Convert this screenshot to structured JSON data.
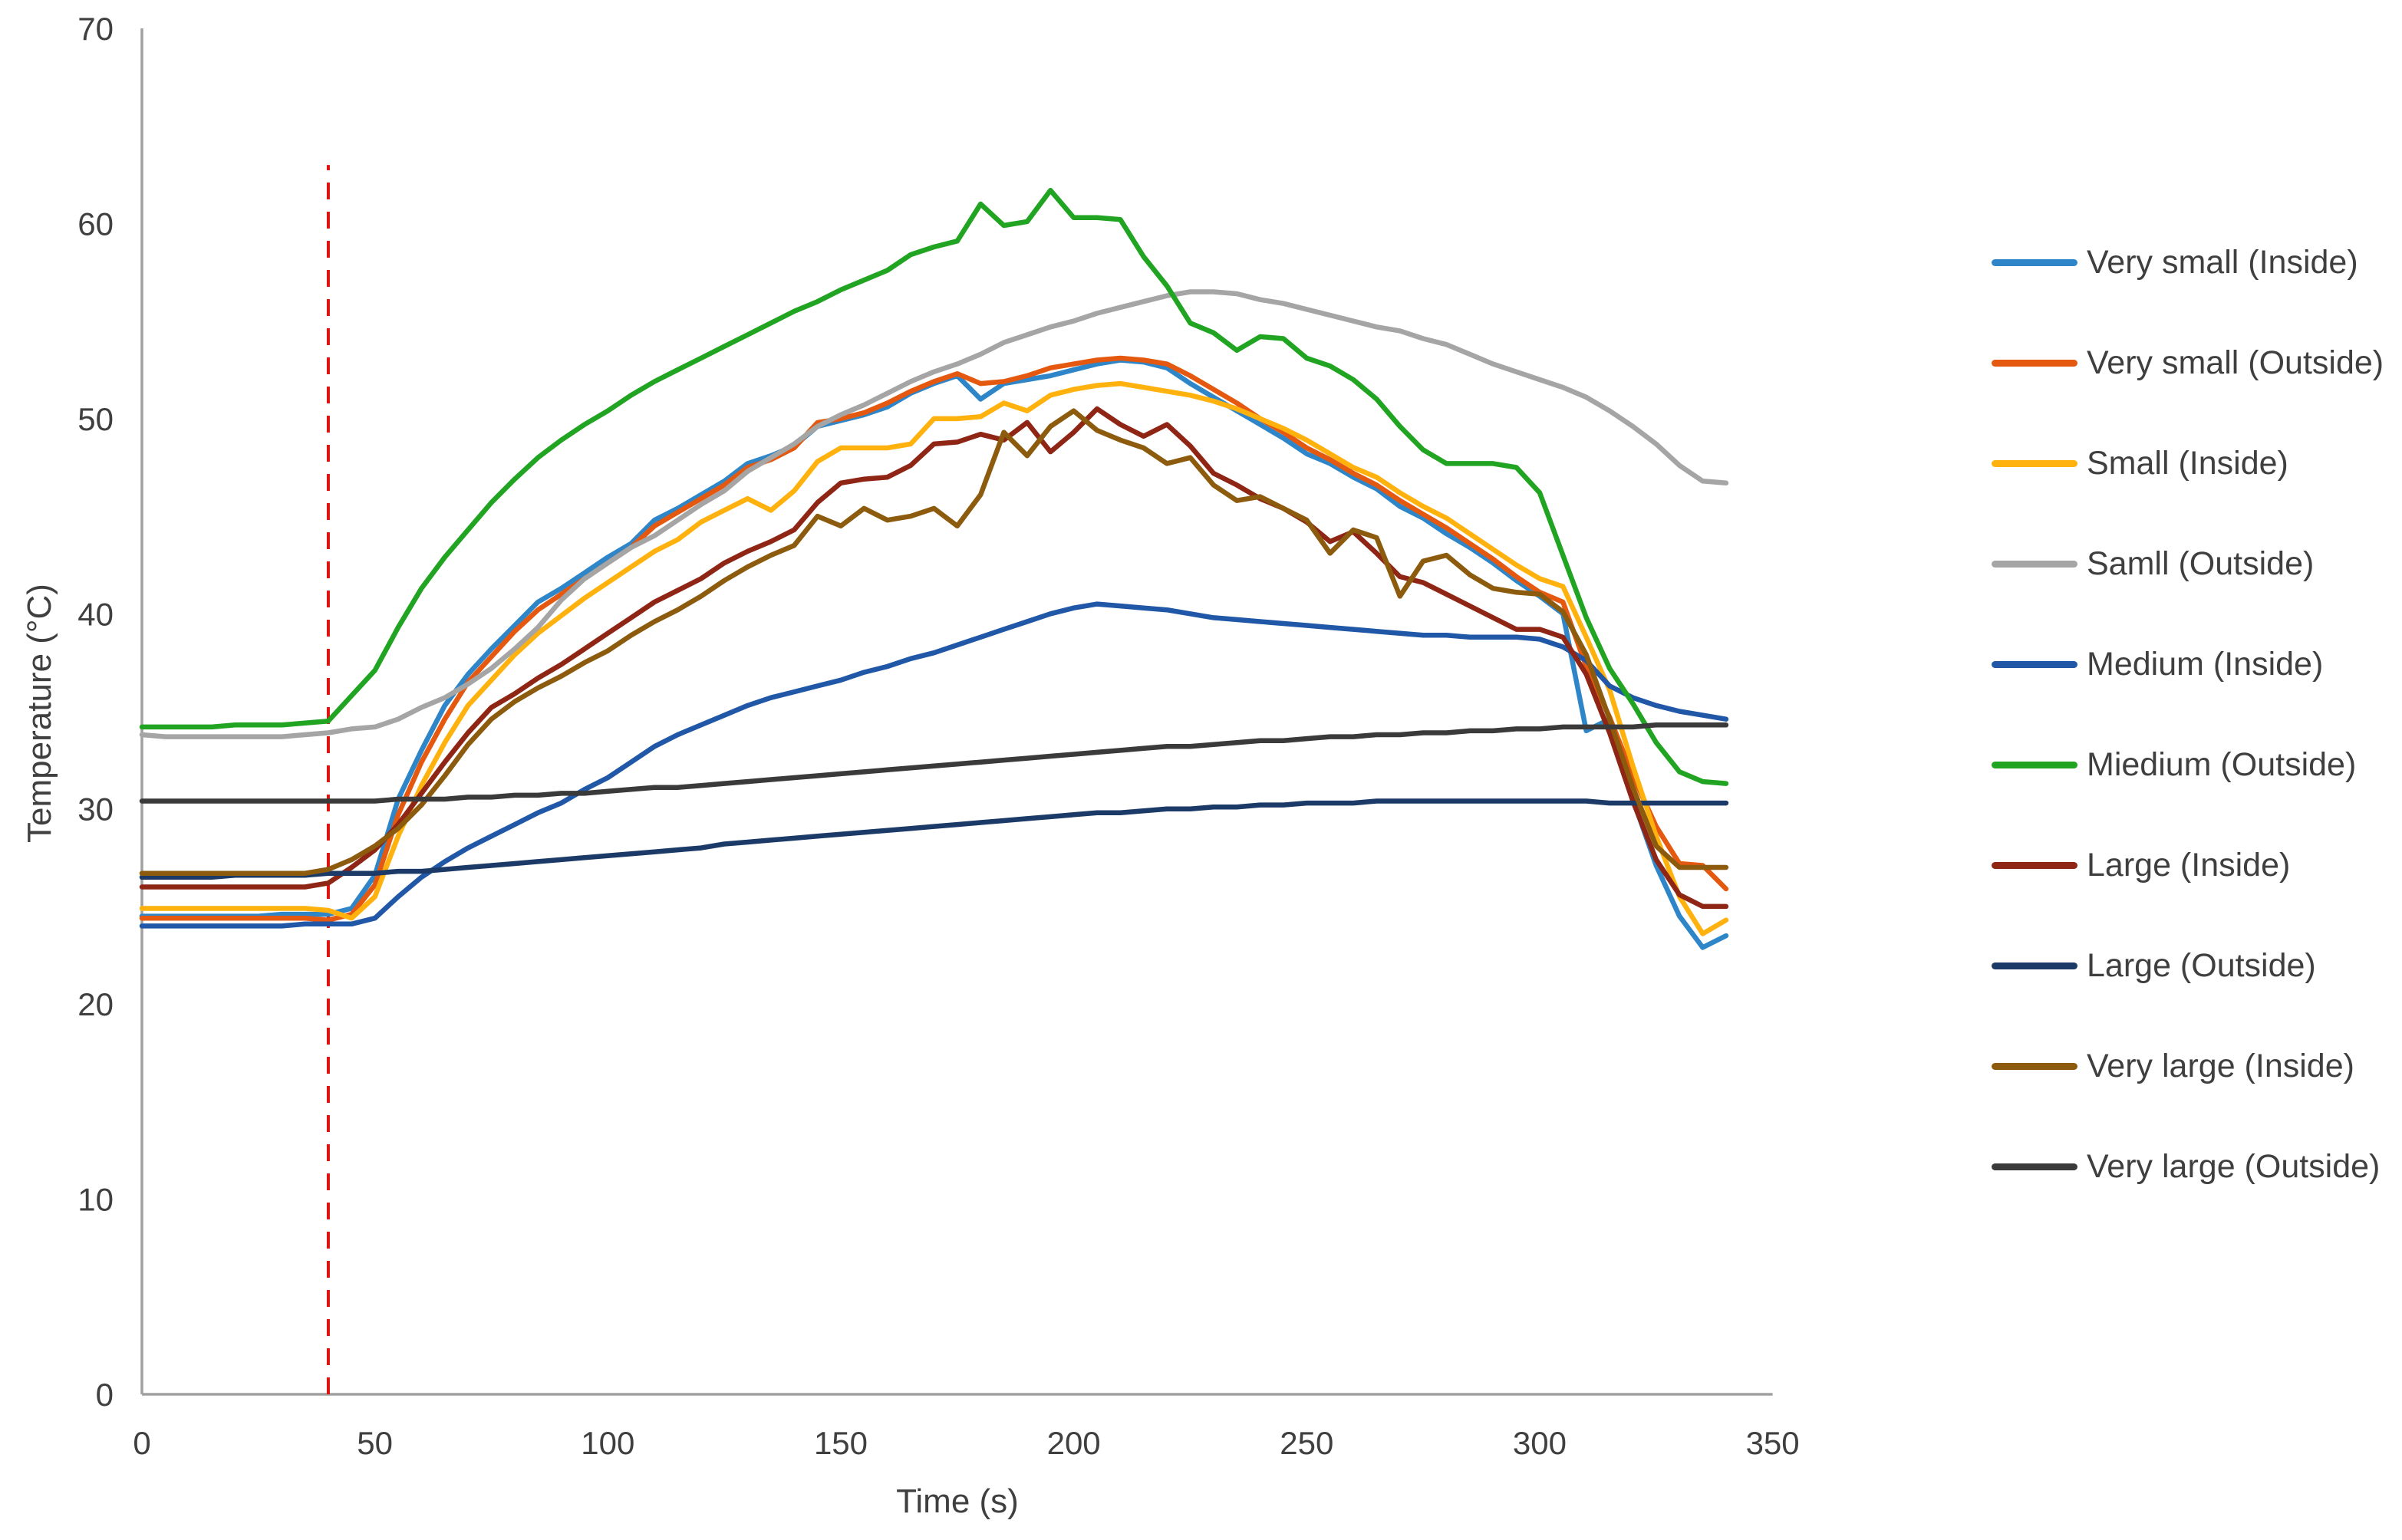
{
  "figure": {
    "background": "#ffffff"
  },
  "chart_data": {
    "type": "line",
    "title": "",
    "xlabel": "Time (s)",
    "ylabel": "Temperature (°C)",
    "xlim": [
      0,
      350
    ],
    "ylim": [
      0,
      70
    ],
    "xticks": [
      0,
      50,
      100,
      150,
      200,
      250,
      300,
      350
    ],
    "yticks": [
      0,
      10,
      20,
      30,
      40,
      50,
      60,
      70
    ],
    "grid": false,
    "legend_position": "right",
    "axis_color": "#a0a0a0",
    "tick_label_color": "#3f3f3f",
    "annotation_vline": {
      "x": 40,
      "y_from": 0,
      "y_to": 63,
      "color": "#e01212",
      "style": "dashed"
    },
    "x": [
      0,
      5,
      10,
      15,
      20,
      25,
      30,
      35,
      40,
      45,
      50,
      55,
      60,
      65,
      70,
      75,
      80,
      85,
      90,
      95,
      100,
      105,
      110,
      115,
      120,
      125,
      130,
      135,
      140,
      145,
      150,
      155,
      160,
      165,
      170,
      175,
      180,
      185,
      190,
      195,
      200,
      205,
      210,
      215,
      220,
      225,
      230,
      235,
      240,
      245,
      250,
      255,
      260,
      265,
      270,
      275,
      280,
      285,
      290,
      295,
      300,
      305,
      310,
      315,
      320,
      325,
      330,
      335,
      340
    ],
    "series": [
      {
        "id": "very-small-inside",
        "name": "Very small (Inside)",
        "color": "#2e86c8",
        "values": [
          24.5,
          24.5,
          24.5,
          24.5,
          24.5,
          24.5,
          24.6,
          24.6,
          24.6,
          24.9,
          26.6,
          30.5,
          33.0,
          35.3,
          36.9,
          38.2,
          39.4,
          40.6,
          41.3,
          42.1,
          42.9,
          43.6,
          44.8,
          45.4,
          46.1,
          46.8,
          47.7,
          48.1,
          48.6,
          49.6,
          49.9,
          50.2,
          50.6,
          51.3,
          51.8,
          52.2,
          51.0,
          51.8,
          52.0,
          52.2,
          52.5,
          52.8,
          53.0,
          52.9,
          52.6,
          51.8,
          51.1,
          50.4,
          49.7,
          49.0,
          48.2,
          47.7,
          47.0,
          46.4,
          45.5,
          44.9,
          44.1,
          43.4,
          42.6,
          41.7,
          40.9,
          40.0,
          34.0,
          34.6,
          30.5,
          27.1,
          24.5,
          22.9,
          23.5
        ]
      },
      {
        "id": "very-small-outside",
        "name": "Very small (Outside)",
        "color": "#e4590f",
        "values": [
          24.4,
          24.4,
          24.4,
          24.4,
          24.4,
          24.4,
          24.4,
          24.4,
          24.3,
          24.6,
          26.1,
          29.7,
          32.4,
          34.6,
          36.5,
          37.8,
          39.1,
          40.2,
          41.0,
          41.8,
          42.6,
          43.4,
          44.5,
          45.2,
          45.9,
          46.6,
          47.5,
          47.9,
          48.5,
          49.8,
          50.0,
          50.3,
          50.8,
          51.4,
          51.9,
          52.3,
          51.8,
          51.9,
          52.2,
          52.6,
          52.8,
          53.0,
          53.1,
          53.0,
          52.8,
          52.2,
          51.5,
          50.8,
          50.0,
          49.3,
          48.5,
          47.9,
          47.2,
          46.6,
          45.8,
          45.1,
          44.4,
          43.6,
          42.8,
          41.9,
          41.1,
          40.6,
          37.3,
          34.7,
          31.7,
          29.1,
          27.2,
          27.1,
          25.9
        ]
      },
      {
        "id": "small-inside",
        "name": "Small (Inside)",
        "color": "#ffb10e",
        "values": [
          24.9,
          24.9,
          24.9,
          24.9,
          24.9,
          24.9,
          24.9,
          24.9,
          24.8,
          24.4,
          25.5,
          28.6,
          31.2,
          33.4,
          35.3,
          36.6,
          37.9,
          39.0,
          39.9,
          40.8,
          41.6,
          42.4,
          43.2,
          43.8,
          44.7,
          45.3,
          45.9,
          45.3,
          46.3,
          47.8,
          48.5,
          48.5,
          48.5,
          48.7,
          50.0,
          50.0,
          50.1,
          50.8,
          50.4,
          51.2,
          51.5,
          51.7,
          51.8,
          51.6,
          51.4,
          51.2,
          50.9,
          50.5,
          50.0,
          49.5,
          48.9,
          48.2,
          47.5,
          47.0,
          46.2,
          45.5,
          44.9,
          44.1,
          43.3,
          42.5,
          41.8,
          41.4,
          38.8,
          36.1,
          32.2,
          28.6,
          25.5,
          23.6,
          24.3
        ]
      },
      {
        "id": "small-outside",
        "name": "Samll (Outside)",
        "color": "#a5a5a5",
        "values": [
          33.8,
          33.7,
          33.7,
          33.7,
          33.7,
          33.7,
          33.7,
          33.8,
          33.9,
          34.1,
          34.2,
          34.6,
          35.2,
          35.7,
          36.4,
          37.2,
          38.2,
          39.3,
          40.7,
          41.8,
          42.6,
          43.4,
          44.0,
          44.8,
          45.6,
          46.3,
          47.3,
          48.0,
          48.7,
          49.6,
          50.2,
          50.7,
          51.3,
          51.9,
          52.4,
          52.8,
          53.3,
          53.9,
          54.3,
          54.7,
          55.0,
          55.4,
          55.7,
          56.0,
          56.3,
          56.5,
          56.5,
          56.4,
          56.1,
          55.9,
          55.6,
          55.3,
          55.0,
          54.7,
          54.5,
          54.1,
          53.8,
          53.3,
          52.8,
          52.4,
          52.0,
          51.6,
          51.1,
          50.4,
          49.6,
          48.7,
          47.6,
          46.8,
          46.7
        ]
      },
      {
        "id": "medium-inside",
        "name": "Medium (Inside)",
        "color": "#2057a7",
        "values": [
          24.0,
          24.0,
          24.0,
          24.0,
          24.0,
          24.0,
          24.0,
          24.1,
          24.1,
          24.1,
          24.4,
          25.5,
          26.5,
          27.3,
          28.0,
          28.6,
          29.2,
          29.8,
          30.3,
          31.0,
          31.6,
          32.4,
          33.2,
          33.8,
          34.3,
          34.8,
          35.3,
          35.7,
          36.0,
          36.3,
          36.6,
          37.0,
          37.3,
          37.7,
          38.0,
          38.4,
          38.8,
          39.2,
          39.6,
          40.0,
          40.3,
          40.5,
          40.4,
          40.3,
          40.2,
          40.0,
          39.8,
          39.7,
          39.6,
          39.5,
          39.4,
          39.3,
          39.2,
          39.1,
          39.0,
          38.9,
          38.9,
          38.8,
          38.8,
          38.8,
          38.7,
          38.3,
          37.6,
          36.3,
          35.7,
          35.3,
          35.0,
          34.8,
          34.6
        ]
      },
      {
        "id": "medium-outside",
        "name": "Miedium (Outside)",
        "color": "#21a421",
        "values": [
          34.2,
          34.2,
          34.2,
          34.2,
          34.3,
          34.3,
          34.3,
          34.4,
          34.5,
          35.8,
          37.1,
          39.3,
          41.3,
          42.9,
          44.3,
          45.7,
          46.9,
          48.0,
          48.9,
          49.7,
          50.4,
          51.2,
          51.9,
          52.5,
          53.1,
          53.7,
          54.3,
          54.9,
          55.5,
          56.0,
          56.6,
          57.1,
          57.6,
          58.4,
          58.8,
          59.1,
          61.0,
          59.9,
          60.1,
          61.7,
          60.3,
          60.3,
          60.2,
          58.3,
          56.8,
          54.9,
          54.4,
          53.5,
          54.2,
          54.1,
          53.1,
          52.7,
          52.0,
          51.0,
          49.6,
          48.4,
          47.7,
          47.7,
          47.7,
          47.5,
          46.2,
          43.0,
          39.8,
          37.2,
          35.4,
          33.4,
          31.9,
          31.4,
          31.3
        ]
      },
      {
        "id": "large-inside",
        "name": "Large (Inside)",
        "color": "#8f2514",
        "values": [
          26.0,
          26.0,
          26.0,
          26.0,
          26.0,
          26.0,
          26.0,
          26.0,
          26.2,
          27.0,
          27.9,
          29.2,
          30.8,
          32.4,
          33.9,
          35.2,
          35.9,
          36.7,
          37.4,
          38.2,
          39.0,
          39.8,
          40.6,
          41.2,
          41.8,
          42.6,
          43.2,
          43.7,
          44.3,
          45.7,
          46.7,
          46.9,
          47.0,
          47.6,
          48.7,
          48.8,
          49.2,
          48.9,
          49.8,
          48.3,
          49.3,
          50.5,
          49.7,
          49.1,
          49.7,
          48.6,
          47.2,
          46.6,
          45.9,
          45.4,
          44.7,
          43.7,
          44.2,
          43.1,
          41.9,
          41.6,
          41.0,
          40.4,
          39.8,
          39.2,
          39.2,
          38.8,
          36.9,
          33.9,
          30.4,
          27.4,
          25.6,
          25.0,
          25.0
        ]
      },
      {
        "id": "large-outside",
        "name": "Large (Outside)",
        "color": "#1b3a67",
        "values": [
          26.5,
          26.5,
          26.5,
          26.5,
          26.6,
          26.6,
          26.6,
          26.6,
          26.7,
          26.7,
          26.7,
          26.8,
          26.8,
          26.9,
          27.0,
          27.1,
          27.2,
          27.3,
          27.4,
          27.5,
          27.6,
          27.7,
          27.8,
          27.9,
          28.0,
          28.2,
          28.3,
          28.4,
          28.5,
          28.6,
          28.7,
          28.8,
          28.9,
          29.0,
          29.1,
          29.2,
          29.3,
          29.4,
          29.5,
          29.6,
          29.7,
          29.8,
          29.8,
          29.9,
          30.0,
          30.0,
          30.1,
          30.1,
          30.2,
          30.2,
          30.3,
          30.3,
          30.3,
          30.4,
          30.4,
          30.4,
          30.4,
          30.4,
          30.4,
          30.4,
          30.4,
          30.4,
          30.4,
          30.3,
          30.3,
          30.3,
          30.3,
          30.3,
          30.3
        ]
      },
      {
        "id": "very-large-inside",
        "name": "Very large (Inside)",
        "color": "#8c5b0e",
        "values": [
          26.7,
          26.7,
          26.7,
          26.7,
          26.7,
          26.7,
          26.7,
          26.7,
          26.9,
          27.4,
          28.1,
          29.0,
          30.2,
          31.7,
          33.3,
          34.6,
          35.5,
          36.2,
          36.8,
          37.5,
          38.1,
          38.9,
          39.6,
          40.2,
          40.9,
          41.7,
          42.4,
          43.0,
          43.5,
          45.0,
          44.5,
          45.4,
          44.8,
          45.0,
          45.4,
          44.5,
          46.1,
          49.3,
          48.1,
          49.6,
          50.4,
          49.4,
          48.9,
          48.5,
          47.7,
          48.0,
          46.6,
          45.8,
          46.0,
          45.4,
          44.8,
          43.1,
          44.3,
          43.9,
          40.9,
          42.7,
          43.0,
          42.0,
          41.3,
          41.1,
          41.0,
          40.1,
          37.9,
          34.6,
          31.1,
          28.1,
          27.0,
          27.0,
          27.0
        ]
      },
      {
        "id": "very-large-outside",
        "name": "Very large (Outside)",
        "color": "#3a3a3a",
        "values": [
          30.4,
          30.4,
          30.4,
          30.4,
          30.4,
          30.4,
          30.4,
          30.4,
          30.4,
          30.4,
          30.4,
          30.5,
          30.5,
          30.5,
          30.6,
          30.6,
          30.7,
          30.7,
          30.8,
          30.8,
          30.9,
          31.0,
          31.1,
          31.1,
          31.2,
          31.3,
          31.4,
          31.5,
          31.6,
          31.7,
          31.8,
          31.9,
          32.0,
          32.1,
          32.2,
          32.3,
          32.4,
          32.5,
          32.6,
          32.7,
          32.8,
          32.9,
          33.0,
          33.1,
          33.2,
          33.2,
          33.3,
          33.4,
          33.5,
          33.5,
          33.6,
          33.7,
          33.7,
          33.8,
          33.8,
          33.9,
          33.9,
          34.0,
          34.0,
          34.1,
          34.1,
          34.2,
          34.2,
          34.2,
          34.2,
          34.3,
          34.3,
          34.3,
          34.3
        ]
      }
    ]
  }
}
